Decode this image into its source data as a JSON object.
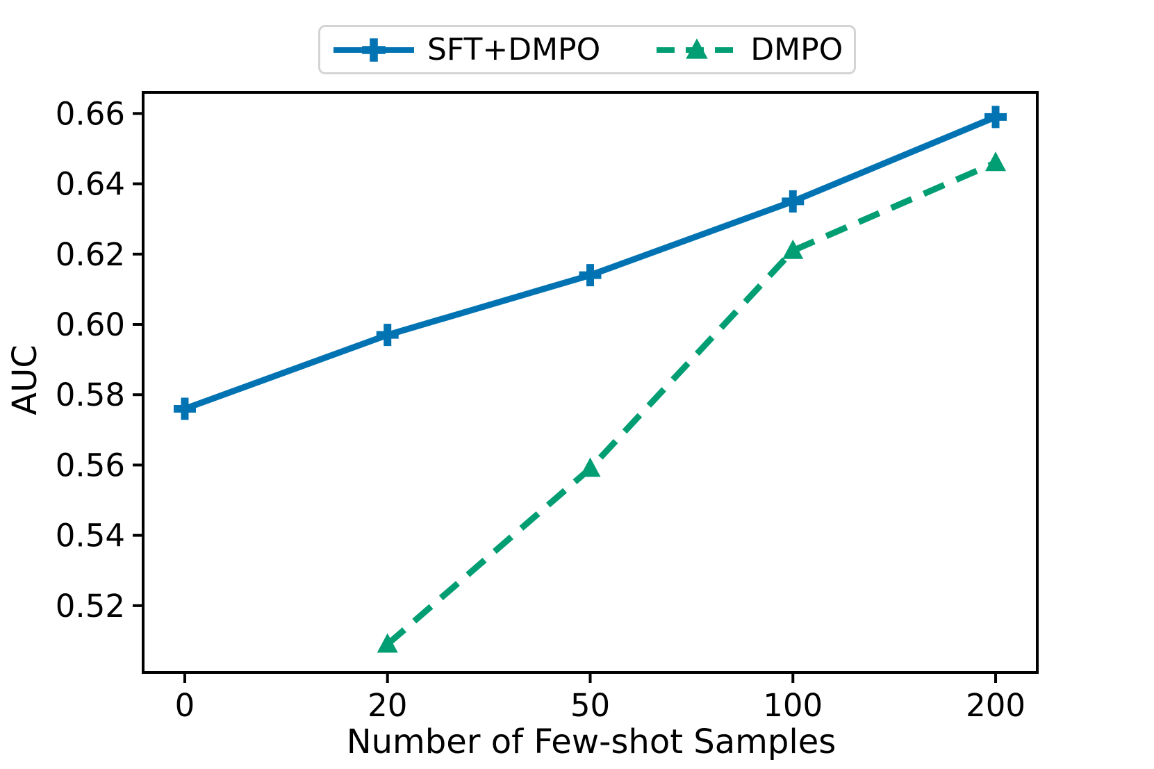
{
  "chart_data": {
    "type": "line",
    "title": "",
    "xlabel": "Number of Few-shot Samples",
    "ylabel": "AUC",
    "categories": [
      0,
      20,
      50,
      100,
      200
    ],
    "yticks": [
      0.52,
      0.54,
      0.56,
      0.58,
      0.6,
      0.62,
      0.64,
      0.66
    ],
    "ylim": [
      0.501,
      0.666
    ],
    "grid": false,
    "legend_position": "above center",
    "series": [
      {
        "name": "SFT+DMPO",
        "x": [
          0,
          20,
          50,
          100,
          200
        ],
        "values": [
          0.576,
          0.597,
          0.614,
          0.635,
          0.659
        ],
        "color": "#0173b2",
        "linestyle": "solid",
        "marker": "plus"
      },
      {
        "name": "DMPO",
        "x": [
          20,
          50,
          100,
          200
        ],
        "values": [
          0.509,
          0.559,
          0.621,
          0.646
        ],
        "color": "#029e73",
        "linestyle": "dashed",
        "marker": "triangle"
      }
    ]
  }
}
